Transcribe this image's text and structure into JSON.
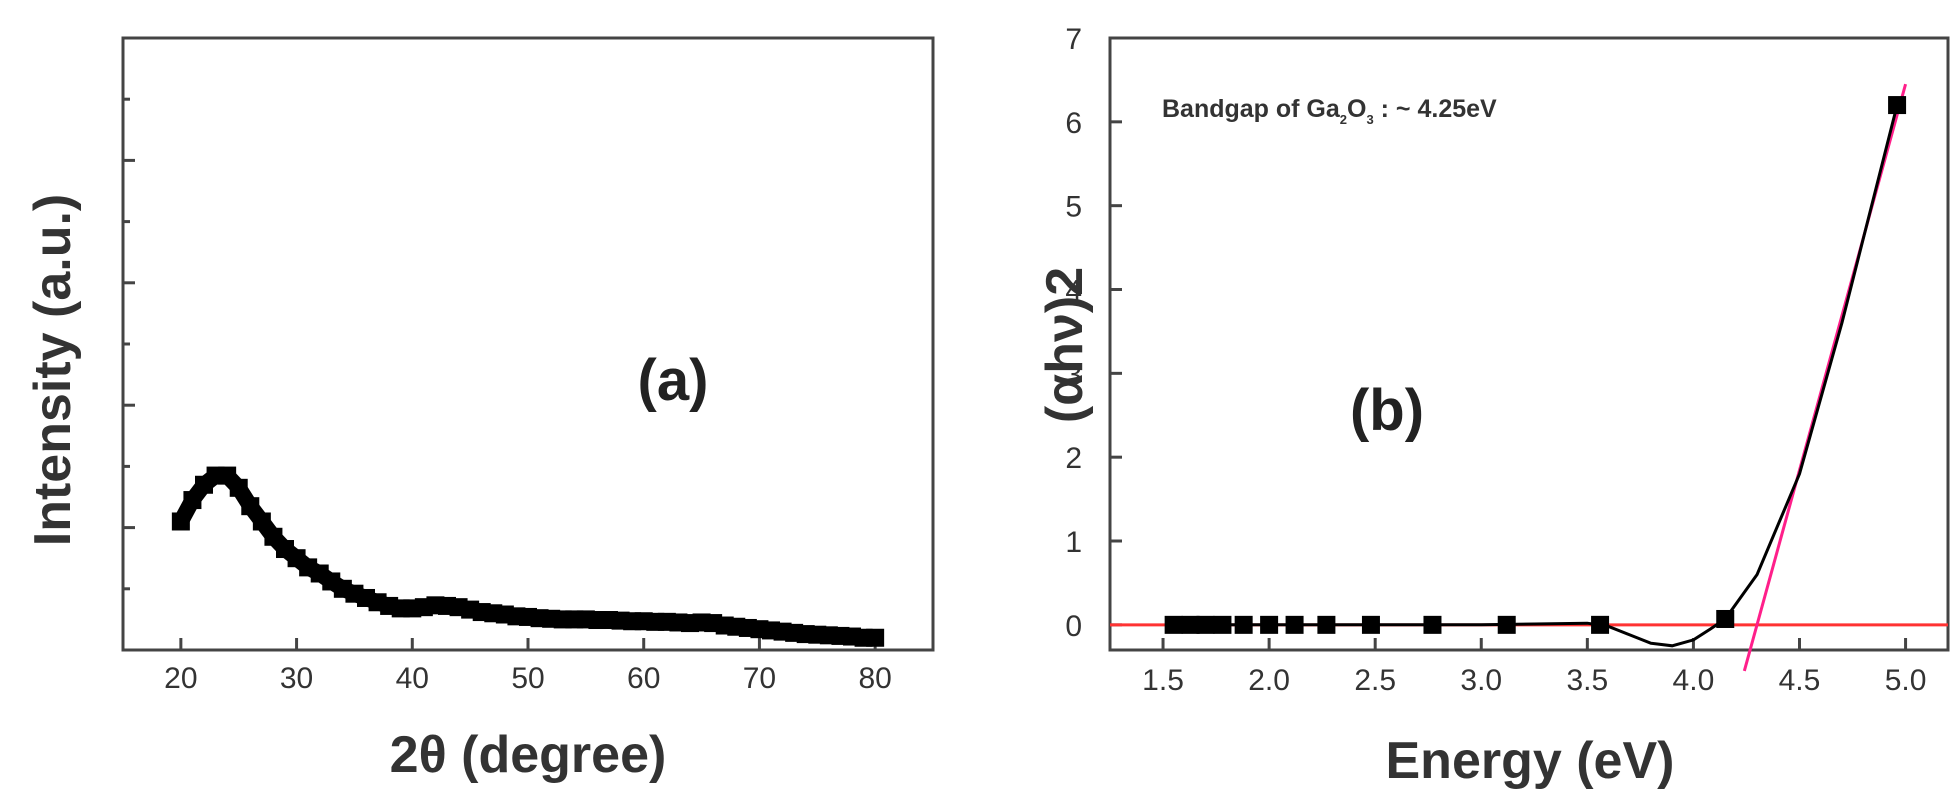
{
  "chart_data": [
    {
      "type": "scatter",
      "panel_label": "(a)",
      "xlabel": "2θ (degree)",
      "ylabel": "Intensity (a.u.)",
      "xlim": [
        15,
        85
      ],
      "ylim": [
        0,
        10
      ],
      "xticks": [
        20,
        30,
        40,
        50,
        60,
        70,
        80
      ],
      "show_yticklabels": false,
      "grid": false,
      "series": [
        {
          "color": "#000000",
          "marker": "square",
          "x": [
            20,
            21,
            22,
            23,
            24,
            25,
            26,
            27,
            28,
            29,
            30,
            31,
            32,
            33,
            34,
            35,
            36,
            37,
            38,
            39,
            40,
            41,
            42,
            43,
            44,
            45,
            46,
            47,
            48,
            49,
            50,
            51,
            52,
            53,
            54,
            55,
            56,
            57,
            58,
            59,
            60,
            61,
            62,
            63,
            64,
            65,
            66,
            67,
            68,
            69,
            70,
            71,
            72,
            73,
            74,
            75,
            76,
            77,
            78,
            79,
            80
          ],
          "y": [
            2.1,
            2.45,
            2.7,
            2.85,
            2.85,
            2.65,
            2.35,
            2.1,
            1.85,
            1.65,
            1.5,
            1.35,
            1.25,
            1.12,
            1.0,
            0.92,
            0.85,
            0.78,
            0.72,
            0.68,
            0.68,
            0.7,
            0.73,
            0.72,
            0.7,
            0.66,
            0.62,
            0.6,
            0.58,
            0.55,
            0.54,
            0.52,
            0.51,
            0.5,
            0.5,
            0.5,
            0.49,
            0.49,
            0.48,
            0.47,
            0.47,
            0.46,
            0.46,
            0.45,
            0.44,
            0.45,
            0.44,
            0.4,
            0.38,
            0.36,
            0.34,
            0.32,
            0.3,
            0.28,
            0.26,
            0.25,
            0.24,
            0.23,
            0.22,
            0.2,
            0.2
          ]
        }
      ]
    },
    {
      "type": "line",
      "panel_label": "(b)",
      "xlabel": "Energy (eV)",
      "ylabel": "(αhν)2",
      "annotation": {
        "text": "Bandgap of Ga",
        "sub1": "2",
        "mid": "O",
        "sub2": "3",
        "tail": " : ~ 4.25eV"
      },
      "xlim": [
        1.25,
        5.2
      ],
      "ylim": [
        -0.3,
        7
      ],
      "xticks": [
        "1.5",
        "2.0",
        "2.5",
        "3.0",
        "3.5",
        "4.0",
        "4.5",
        "5.0"
      ],
      "yticks": [
        "0",
        "1",
        "2",
        "3",
        "4",
        "5",
        "6",
        "7"
      ],
      "grid": false,
      "series": [
        {
          "color": "#000000",
          "marker": "square",
          "points": {
            "x": [
              1.55,
              1.63,
              1.7,
              1.78,
              1.88,
              2.0,
              2.12,
              2.27,
              2.48,
              2.77,
              3.12,
              3.56,
              4.15,
              4.96
            ],
            "y": [
              0,
              0,
              0,
              0,
              0,
              0,
              0,
              0,
              0,
              0,
              0,
              0,
              0.07,
              6.2
            ]
          },
          "curve": {
            "x": [
              1.55,
              2.0,
              2.5,
              3.0,
              3.25,
              3.5,
              3.6,
              3.7,
              3.8,
              3.9,
              4.0,
              4.08,
              4.15,
              4.3,
              4.5,
              4.7,
              4.96
            ],
            "y": [
              0,
              0,
              0,
              0,
              0.01,
              0.02,
              -0.02,
              -0.12,
              -0.22,
              -0.25,
              -0.18,
              -0.05,
              0.07,
              0.6,
              1.8,
              3.6,
              6.2
            ]
          }
        },
        {
          "color": "#ff3333",
          "kind": "baseline",
          "x": [
            1.25,
            5.2
          ],
          "y": [
            0,
            0
          ]
        },
        {
          "color": "#ff1f8a",
          "kind": "tangent",
          "x": [
            4.24,
            5.0
          ],
          "y": [
            -0.55,
            6.45
          ]
        }
      ]
    }
  ]
}
